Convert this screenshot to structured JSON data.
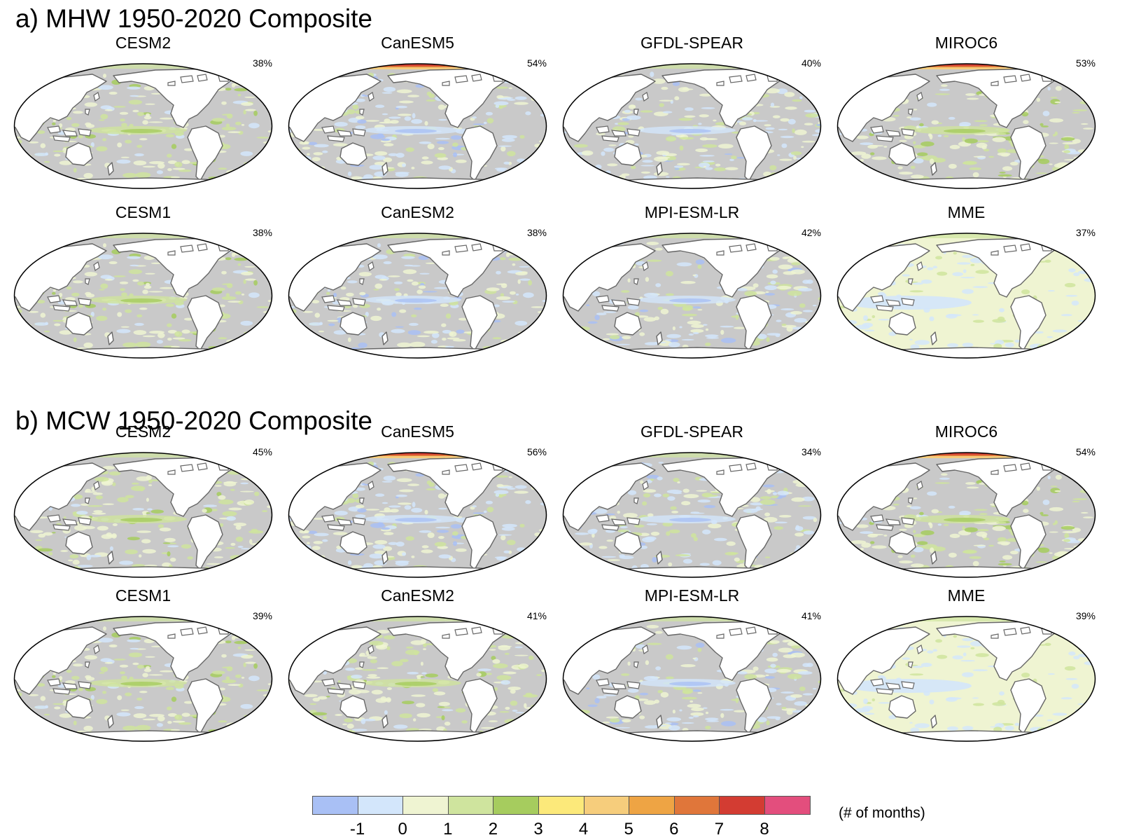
{
  "sections": [
    {
      "title": "a) MHW 1950-2020 Composite",
      "panels": [
        {
          "model": "CESM2",
          "pct": "38%",
          "style": "gray-green",
          "arctic": "none"
        },
        {
          "model": "CanESM5",
          "pct": "54%",
          "style": "gray-blue",
          "arctic": "hot"
        },
        {
          "model": "GFDL-SPEAR",
          "pct": "40%",
          "style": "gray-blue",
          "arctic": "none"
        },
        {
          "model": "MIROC6",
          "pct": "53%",
          "style": "gray-green",
          "arctic": "hot"
        },
        {
          "model": "CESM1",
          "pct": "38%",
          "style": "gray-green",
          "arctic": "none"
        },
        {
          "model": "CanESM2",
          "pct": "38%",
          "style": "gray-blue",
          "arctic": "none"
        },
        {
          "model": "MPI-ESM-LR",
          "pct": "42%",
          "style": "gray-blue",
          "arctic": "none"
        },
        {
          "model": "MME",
          "pct": "37%",
          "style": "pale",
          "arctic": "none"
        }
      ]
    },
    {
      "title": "b) MCW 1950-2020 Composite",
      "panels": [
        {
          "model": "CESM2",
          "pct": "45%",
          "style": "gray-green",
          "arctic": "none"
        },
        {
          "model": "CanESM5",
          "pct": "56%",
          "style": "gray-blue",
          "arctic": "hot"
        },
        {
          "model": "GFDL-SPEAR",
          "pct": "34%",
          "style": "gray-blue",
          "arctic": "none"
        },
        {
          "model": "MIROC6",
          "pct": "54%",
          "style": "gray-green",
          "arctic": "hot"
        },
        {
          "model": "CESM1",
          "pct": "39%",
          "style": "gray-green",
          "arctic": "none"
        },
        {
          "model": "CanESM2",
          "pct": "41%",
          "style": "gray-green",
          "arctic": "none"
        },
        {
          "model": "MPI-ESM-LR",
          "pct": "41%",
          "style": "gray-blue",
          "arctic": "none"
        },
        {
          "model": "MME",
          "pct": "39%",
          "style": "pale",
          "arctic": "none"
        }
      ]
    }
  ],
  "colorbar": {
    "colors": [
      "#a9c0f5",
      "#d3e6fb",
      "#eff4d2",
      "#cfe49e",
      "#a6cc5e",
      "#fce97a",
      "#f6cd7c",
      "#eea444",
      "#e0763a",
      "#d33c32",
      "#e34e7d"
    ],
    "ticks": [
      "-1",
      "0",
      "1",
      "2",
      "3",
      "4",
      "5",
      "6",
      "7",
      "8"
    ],
    "unit": "(# of months)"
  },
  "map_colors": {
    "ocean_gray": "#c9c9c9",
    "land": "#ffffff",
    "coast": "#666666"
  }
}
